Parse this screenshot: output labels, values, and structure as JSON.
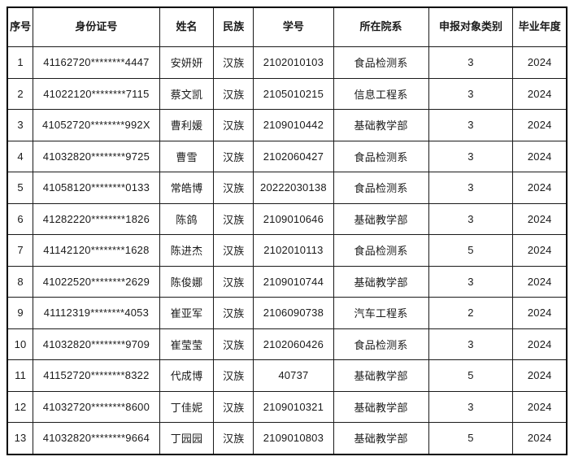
{
  "page": {
    "background_color": "#ffffff",
    "text_color": "#1a1a1a",
    "border_color": "#000000"
  },
  "table": {
    "columns": [
      {
        "key": "index",
        "label": "序号"
      },
      {
        "key": "id-number",
        "label": "身份证号"
      },
      {
        "key": "name",
        "label": "姓名"
      },
      {
        "key": "ethnicity",
        "label": "民族"
      },
      {
        "key": "student-id",
        "label": "学号"
      },
      {
        "key": "department",
        "label": "所在院系"
      },
      {
        "key": "category",
        "label": "申报对象类别"
      },
      {
        "key": "grad-year",
        "label": "毕业年度"
      }
    ],
    "rows": [
      [
        "1",
        "41162720********4447",
        "安妍妍",
        "汉族",
        "2102010103",
        "食品检测系",
        "3",
        "2024"
      ],
      [
        "2",
        "41022120********7115",
        "蔡文凯",
        "汉族",
        "2105010215",
        "信息工程系",
        "3",
        "2024"
      ],
      [
        "3",
        "41052720********992X",
        "曹利媛",
        "汉族",
        "2109010442",
        "基础教学部",
        "3",
        "2024"
      ],
      [
        "4",
        "41032820********9725",
        "曹雪",
        "汉族",
        "2102060427",
        "食品检测系",
        "3",
        "2024"
      ],
      [
        "5",
        "41058120********0133",
        "常皓博",
        "汉族",
        "20222030138",
        "食品检测系",
        "3",
        "2024"
      ],
      [
        "6",
        "41282220********1826",
        "陈鸽",
        "汉族",
        "2109010646",
        "基础教学部",
        "3",
        "2024"
      ],
      [
        "7",
        "41142120********1628",
        "陈进杰",
        "汉族",
        "2102010113",
        "食品检测系",
        "5",
        "2024"
      ],
      [
        "8",
        "41022520********2629",
        "陈俊娜",
        "汉族",
        "2109010744",
        "基础教学部",
        "3",
        "2024"
      ],
      [
        "9",
        "41112319********4053",
        "崔亚军",
        "汉族",
        "2106090738",
        "汽车工程系",
        "2",
        "2024"
      ],
      [
        "10",
        "41032820********9709",
        "崔莹莹",
        "汉族",
        "2102060426",
        "食品检测系",
        "3",
        "2024"
      ],
      [
        "11",
        "41152720********8322",
        "代成博",
        "汉族",
        "40737",
        "基础教学部",
        "5",
        "2024"
      ],
      [
        "12",
        "41032720********8600",
        "丁佳妮",
        "汉族",
        "2109010321",
        "基础教学部",
        "3",
        "2024"
      ],
      [
        "13",
        "41032820********9664",
        "丁园园",
        "汉族",
        "2109010803",
        "基础教学部",
        "5",
        "2024"
      ]
    ]
  }
}
